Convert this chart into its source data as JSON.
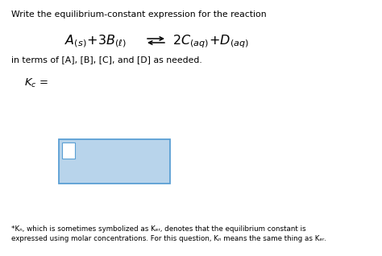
{
  "bg_color": "#ffffff",
  "title_text": "Write the equilibrium-constant expression for the reaction",
  "in_terms_text": "in terms of [A], [B], [C], and [D] as needed.",
  "box_face_color": "#b8d4eb",
  "box_edge_color": "#5a9fd4",
  "small_box_face_color": "#ffffff",
  "small_box_edge_color": "#5a9fd4",
  "footnote_line1": "*Kₙ, which is sometimes symbolized as Kₑᵣ, denotes that the equilibrium constant is",
  "footnote_line2": "expressed using molar concentrations. For this question, Kₙ means the same thing as Kₑᵣ."
}
